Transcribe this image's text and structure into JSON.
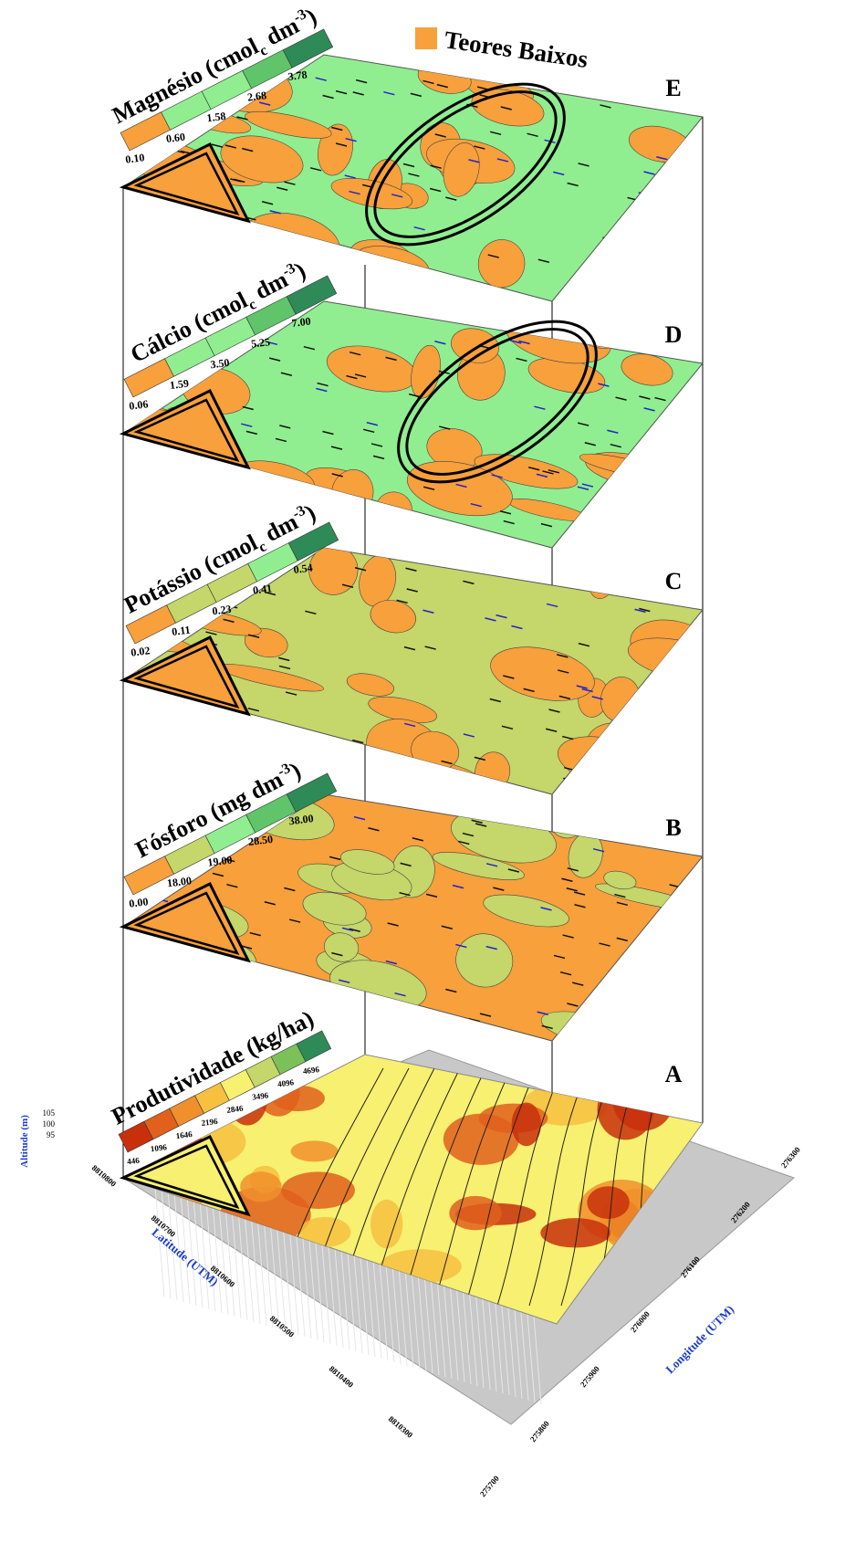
{
  "legend": {
    "label": "Teores Baixos"
  },
  "layers": [
    {
      "letter": "E",
      "title": {
        "name": "Magnésio (cmol",
        "sub": "c",
        "unit": " dm",
        "sup": "-3",
        "close": ")"
      },
      "ticks": [
        "0.10",
        "0.60",
        "1.58",
        "2.68",
        "3.78"
      ]
    },
    {
      "letter": "D",
      "title": {
        "name": "Cálcio (cmol",
        "sub": "c",
        "unit": " dm",
        "sup": "-3",
        "close": ")"
      },
      "ticks": [
        "0.06",
        "1.59",
        "3.50",
        "5.25",
        "7.00"
      ]
    },
    {
      "letter": "C",
      "title": {
        "name": "Potássio (cmol",
        "sub": "c",
        "unit": " dm",
        "sup": "-3",
        "close": ")"
      },
      "ticks": [
        "0.02",
        "0.11",
        "0.23",
        "0.41",
        "0.54"
      ]
    },
    {
      "letter": "B",
      "title": {
        "name": "Fósforo  (mg dm",
        "sub": "",
        "unit": "",
        "sup": "-3",
        "close": ")"
      },
      "ticks": [
        "0.00",
        "18.00",
        "19.00",
        "28.50",
        "38.00"
      ]
    },
    {
      "letter": "A",
      "title": {
        "name": "Produtividade (kg/ha)",
        "sub": "",
        "unit": "",
        "sup": "",
        "close": ""
      },
      "ticks": [
        "446",
        "1096",
        "1646",
        "2196",
        "2846",
        "3496",
        "4096",
        "4696"
      ]
    }
  ],
  "axes": {
    "altitude": {
      "label": "Altitude (m)",
      "ticks": [
        "105",
        "100",
        "95"
      ]
    },
    "latitude": {
      "label": "Latitude (UTM)",
      "ticks": [
        "8810800",
        "8810700",
        "8810600",
        "8810500",
        "8810400",
        "8810300"
      ]
    },
    "longitude": {
      "label": "Longitude (UTM)",
      "ticks": [
        "275700",
        "275800",
        "275900",
        "276000",
        "276100",
        "276200",
        "276300"
      ]
    }
  }
}
